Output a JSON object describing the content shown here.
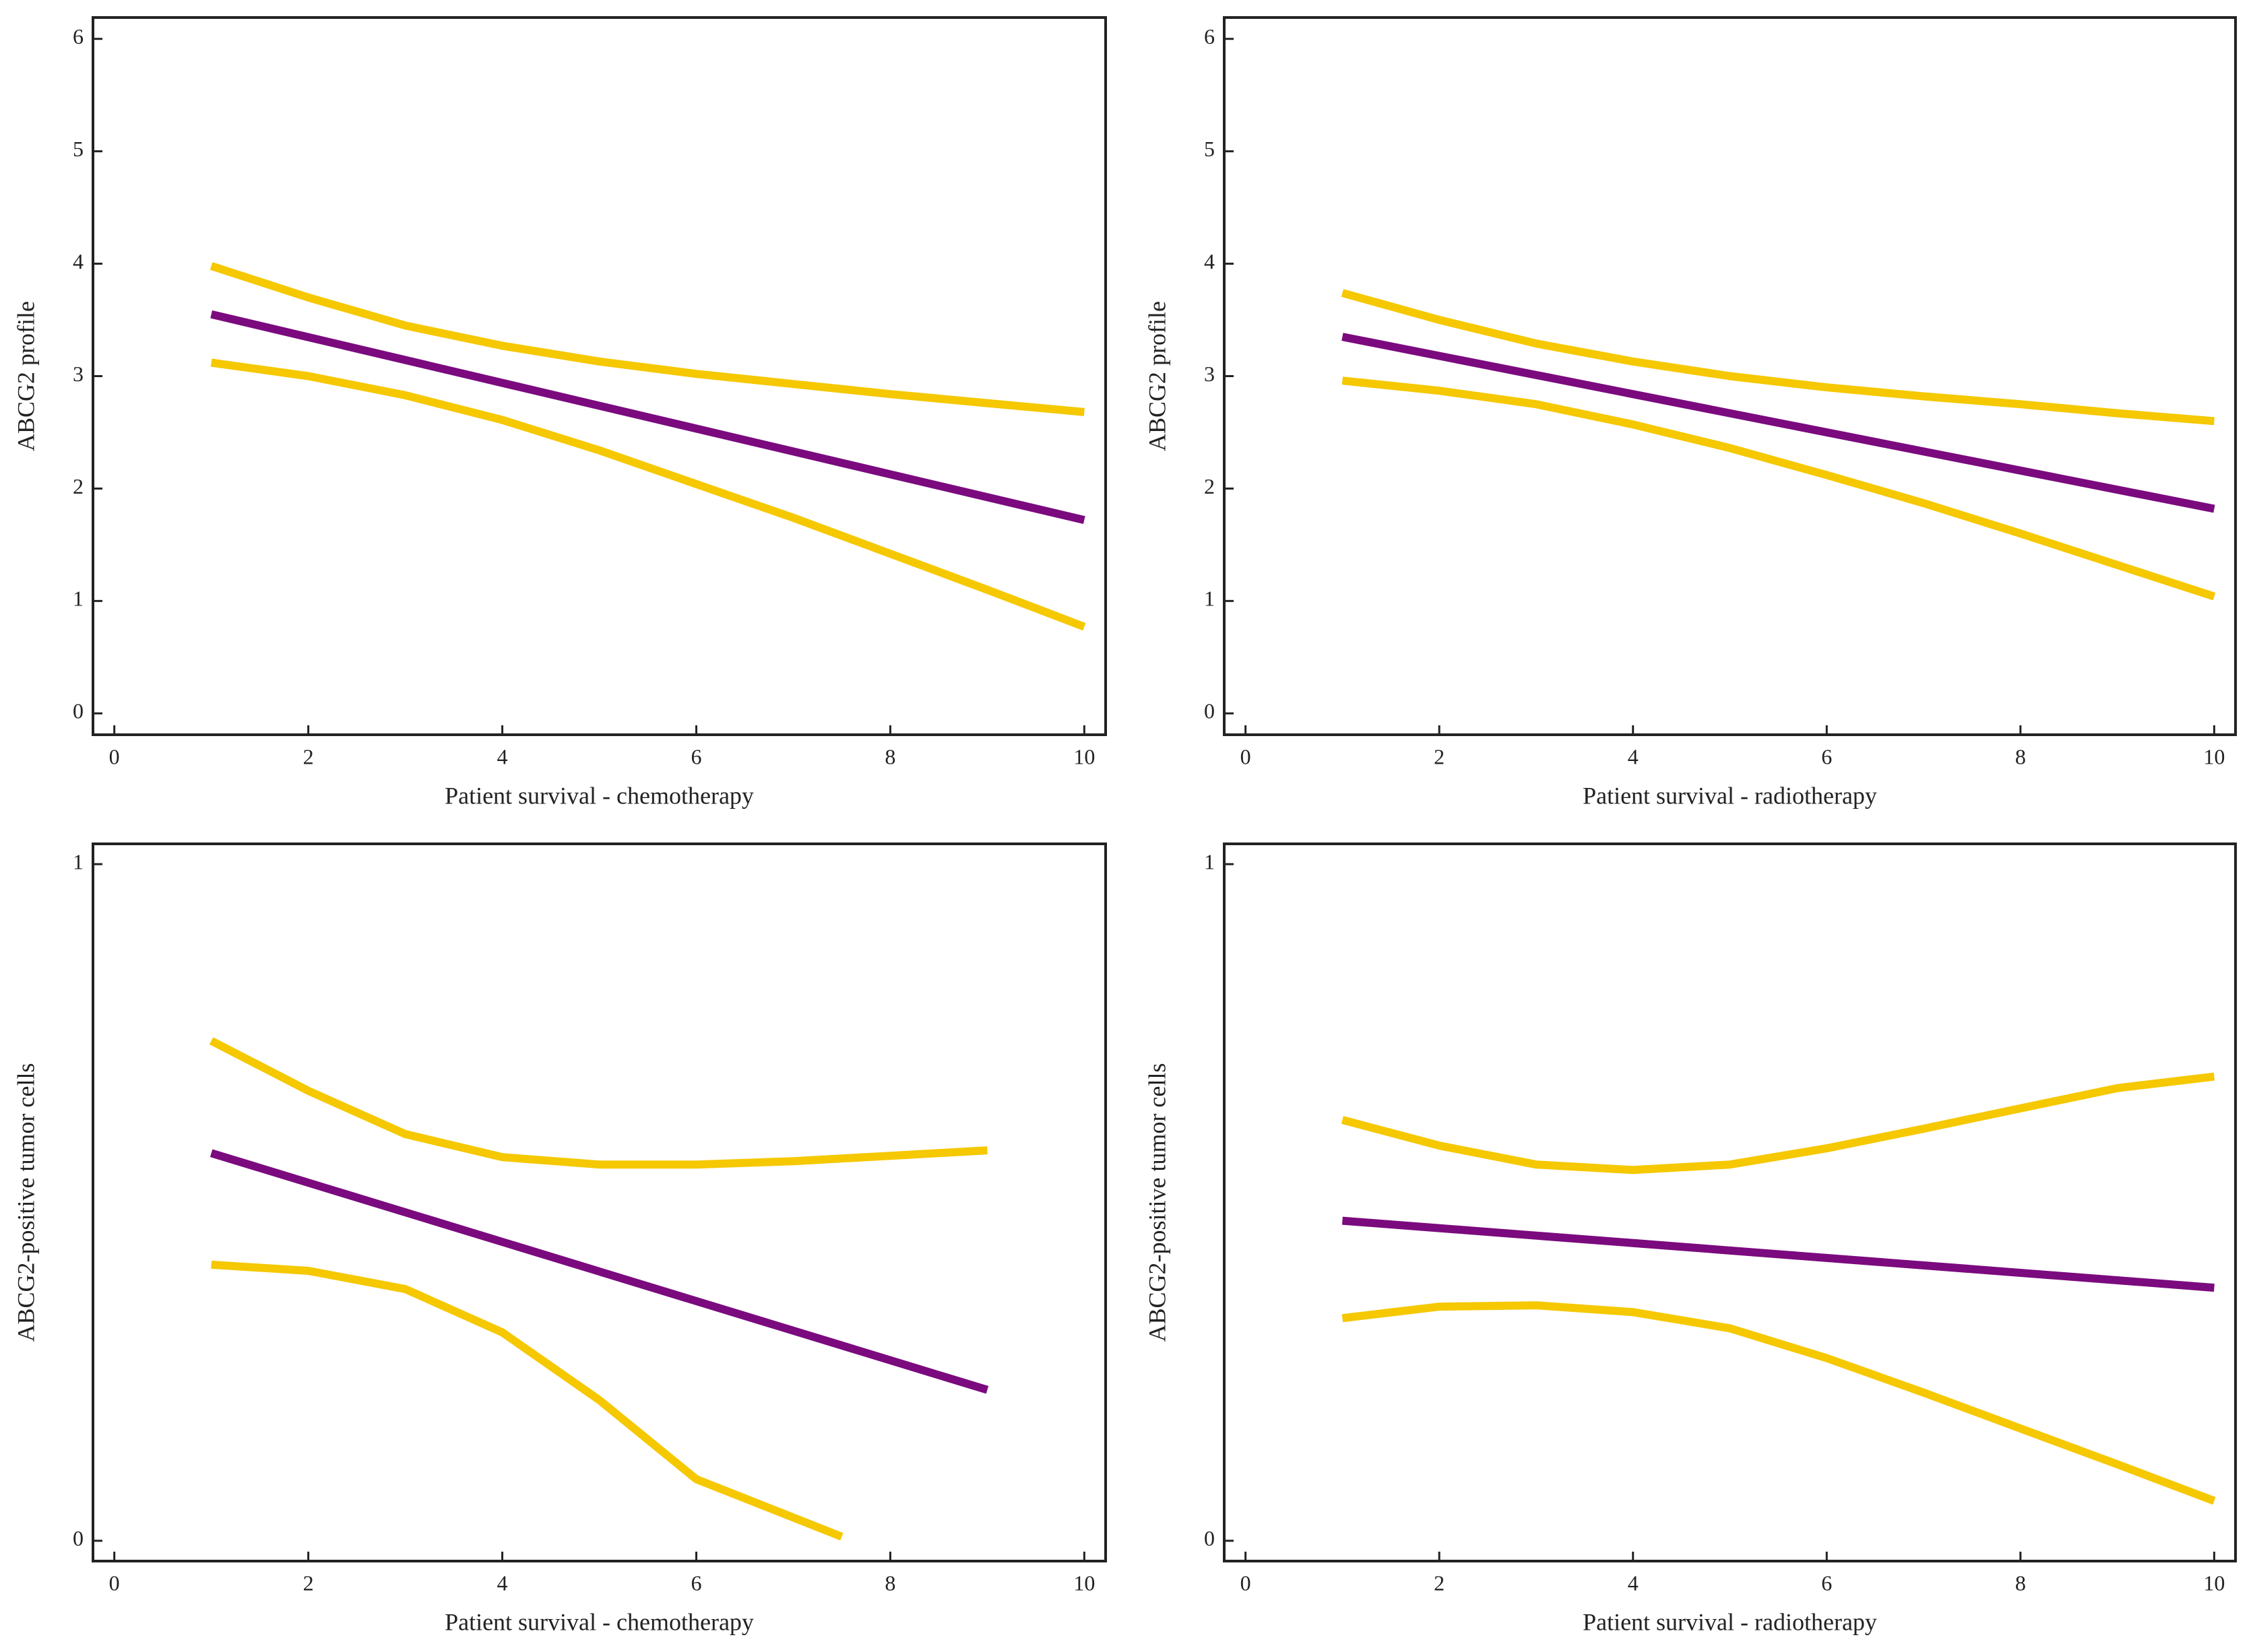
{
  "chart_data": [
    {
      "type": "line",
      "x_label": "Patient survival - chemotherapy",
      "y_label": "ABCG2 profile",
      "xlim": [
        -0.22,
        10.22
      ],
      "ylim": [
        -0.19,
        6.19
      ],
      "xticks": [
        0,
        2,
        4,
        6,
        8,
        10
      ],
      "yticks": [
        0,
        1,
        2,
        3,
        4,
        5,
        6
      ],
      "series": [
        {
          "color": "#f5c800",
          "x": [
            1,
            2,
            3,
            4,
            5,
            6,
            7,
            8,
            9,
            10
          ],
          "values": [
            3.98,
            3.7,
            3.45,
            3.27,
            3.13,
            3.02,
            2.93,
            2.84,
            2.76,
            2.68
          ]
        },
        {
          "color": "#f5c800",
          "x": [
            1,
            2,
            3,
            4,
            5,
            6,
            7,
            8,
            9,
            10
          ],
          "values": [
            3.12,
            3.0,
            2.83,
            2.61,
            2.34,
            2.04,
            1.74,
            1.42,
            1.1,
            0.77
          ]
        },
        {
          "color": "#7b0a7e",
          "x": [
            1,
            10
          ],
          "values": [
            3.55,
            1.72
          ]
        }
      ]
    },
    {
      "type": "line",
      "x_label": "Patient survival - radiotherapy",
      "y_label": "ABCG2 profile",
      "xlim": [
        -0.22,
        10.22
      ],
      "ylim": [
        -0.19,
        6.19
      ],
      "xticks": [
        0,
        2,
        4,
        6,
        8,
        10
      ],
      "yticks": [
        0,
        1,
        2,
        3,
        4,
        5,
        6
      ],
      "series": [
        {
          "color": "#f5c800",
          "x": [
            1,
            2,
            3,
            4,
            5,
            6,
            7,
            8,
            9,
            10
          ],
          "values": [
            3.74,
            3.5,
            3.29,
            3.13,
            3.0,
            2.9,
            2.82,
            2.75,
            2.67,
            2.6
          ]
        },
        {
          "color": "#f5c800",
          "x": [
            1,
            2,
            3,
            4,
            5,
            6,
            7,
            8,
            9,
            10
          ],
          "values": [
            2.96,
            2.87,
            2.75,
            2.57,
            2.36,
            2.12,
            1.87,
            1.6,
            1.32,
            1.04
          ]
        },
        {
          "color": "#7b0a7e",
          "x": [
            1,
            10
          ],
          "values": [
            3.35,
            1.82
          ]
        }
      ]
    },
    {
      "type": "line",
      "x_label": "Patient survival - chemotherapy",
      "y_label": "ABCG2-positive tumor cells",
      "xlim": [
        -0.22,
        10.22
      ],
      "ylim": [
        -0.03,
        1.03
      ],
      "xticks": [
        0,
        2,
        4,
        6,
        8,
        10
      ],
      "yticks": [
        0,
        1
      ],
      "series": [
        {
          "color": "#f5c800",
          "x": [
            1,
            2,
            3,
            4,
            5,
            6,
            7,
            8,
            9
          ],
          "values": [
            0.739,
            0.665,
            0.601,
            0.567,
            0.556,
            0.556,
            0.561,
            0.569,
            0.577
          ]
        },
        {
          "color": "#f5c800",
          "x": [
            1,
            2,
            3,
            4,
            5,
            6,
            7.5
          ],
          "values": [
            0.408,
            0.399,
            0.372,
            0.308,
            0.208,
            0.091,
            0.006
          ]
        },
        {
          "color": "#7b0a7e",
          "x": [
            1,
            9
          ],
          "values": [
            0.573,
            0.223
          ]
        }
      ]
    },
    {
      "type": "line",
      "x_label": "Patient survival - radiotherapy",
      "y_label": "ABCG2-positive tumor cells",
      "xlim": [
        -0.22,
        10.22
      ],
      "ylim": [
        -0.03,
        1.03
      ],
      "xticks": [
        0,
        2,
        4,
        6,
        8,
        10
      ],
      "yticks": [
        0,
        1
      ],
      "series": [
        {
          "color": "#f5c800",
          "x": [
            1,
            2,
            3,
            4,
            5,
            6,
            7,
            8,
            9,
            10
          ],
          "values": [
            0.622,
            0.584,
            0.556,
            0.548,
            0.556,
            0.58,
            0.609,
            0.639,
            0.669,
            0.686
          ]
        },
        {
          "color": "#f5c800",
          "x": [
            1,
            2,
            3,
            4,
            5,
            6,
            7,
            8,
            9,
            10
          ],
          "values": [
            0.329,
            0.346,
            0.348,
            0.338,
            0.314,
            0.27,
            0.219,
            0.166,
            0.113,
            0.059
          ]
        },
        {
          "color": "#7b0a7e",
          "x": [
            1,
            10
          ],
          "values": [
            0.473,
            0.374
          ]
        }
      ]
    }
  ]
}
